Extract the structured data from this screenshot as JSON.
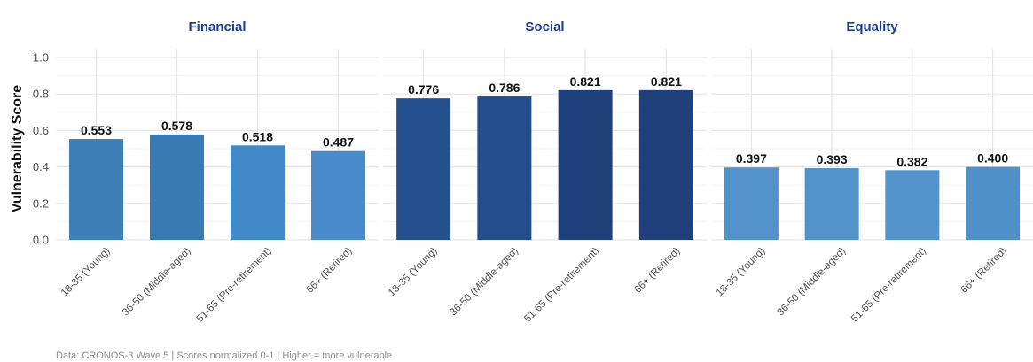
{
  "chart_data": {
    "type": "bar",
    "ylabel": "Vulnerability Score",
    "ylim": [
      0,
      1.0
    ],
    "yticks": [
      "0.0",
      "0.2",
      "0.4",
      "0.6",
      "0.8",
      "1.0"
    ],
    "categories": [
      "18-35 (Young)",
      "36-50 (Middle-aged)",
      "51-65 (Pre-retirement)",
      "66+ (Retired)"
    ],
    "grid": true,
    "facets": [
      {
        "title": "Financial",
        "values": [
          0.553,
          0.578,
          0.518,
          0.487
        ],
        "labels": [
          "0.553",
          "0.578",
          "0.518",
          "0.487"
        ],
        "colors": [
          "#3f7fb8",
          "#3a7ab3",
          "#4289c8",
          "#4a8bcb"
        ]
      },
      {
        "title": "Social",
        "values": [
          0.776,
          0.786,
          0.821,
          0.821
        ],
        "labels": [
          "0.776",
          "0.786",
          "0.821",
          "0.821"
        ],
        "colors": [
          "#24508e",
          "#234d8b",
          "#1f407a",
          "#1f407a"
        ]
      },
      {
        "title": "Equality",
        "values": [
          0.397,
          0.393,
          0.382,
          0.4
        ],
        "labels": [
          "0.397",
          "0.393",
          "0.382",
          "0.400"
        ],
        "colors": [
          "#5292c9",
          "#5292c9",
          "#5594ca",
          "#4f91c8"
        ]
      }
    ]
  },
  "caption": "Data: CRONOS-3 Wave 5 | Scores normalized 0-1 | Higher = more vulnerable"
}
